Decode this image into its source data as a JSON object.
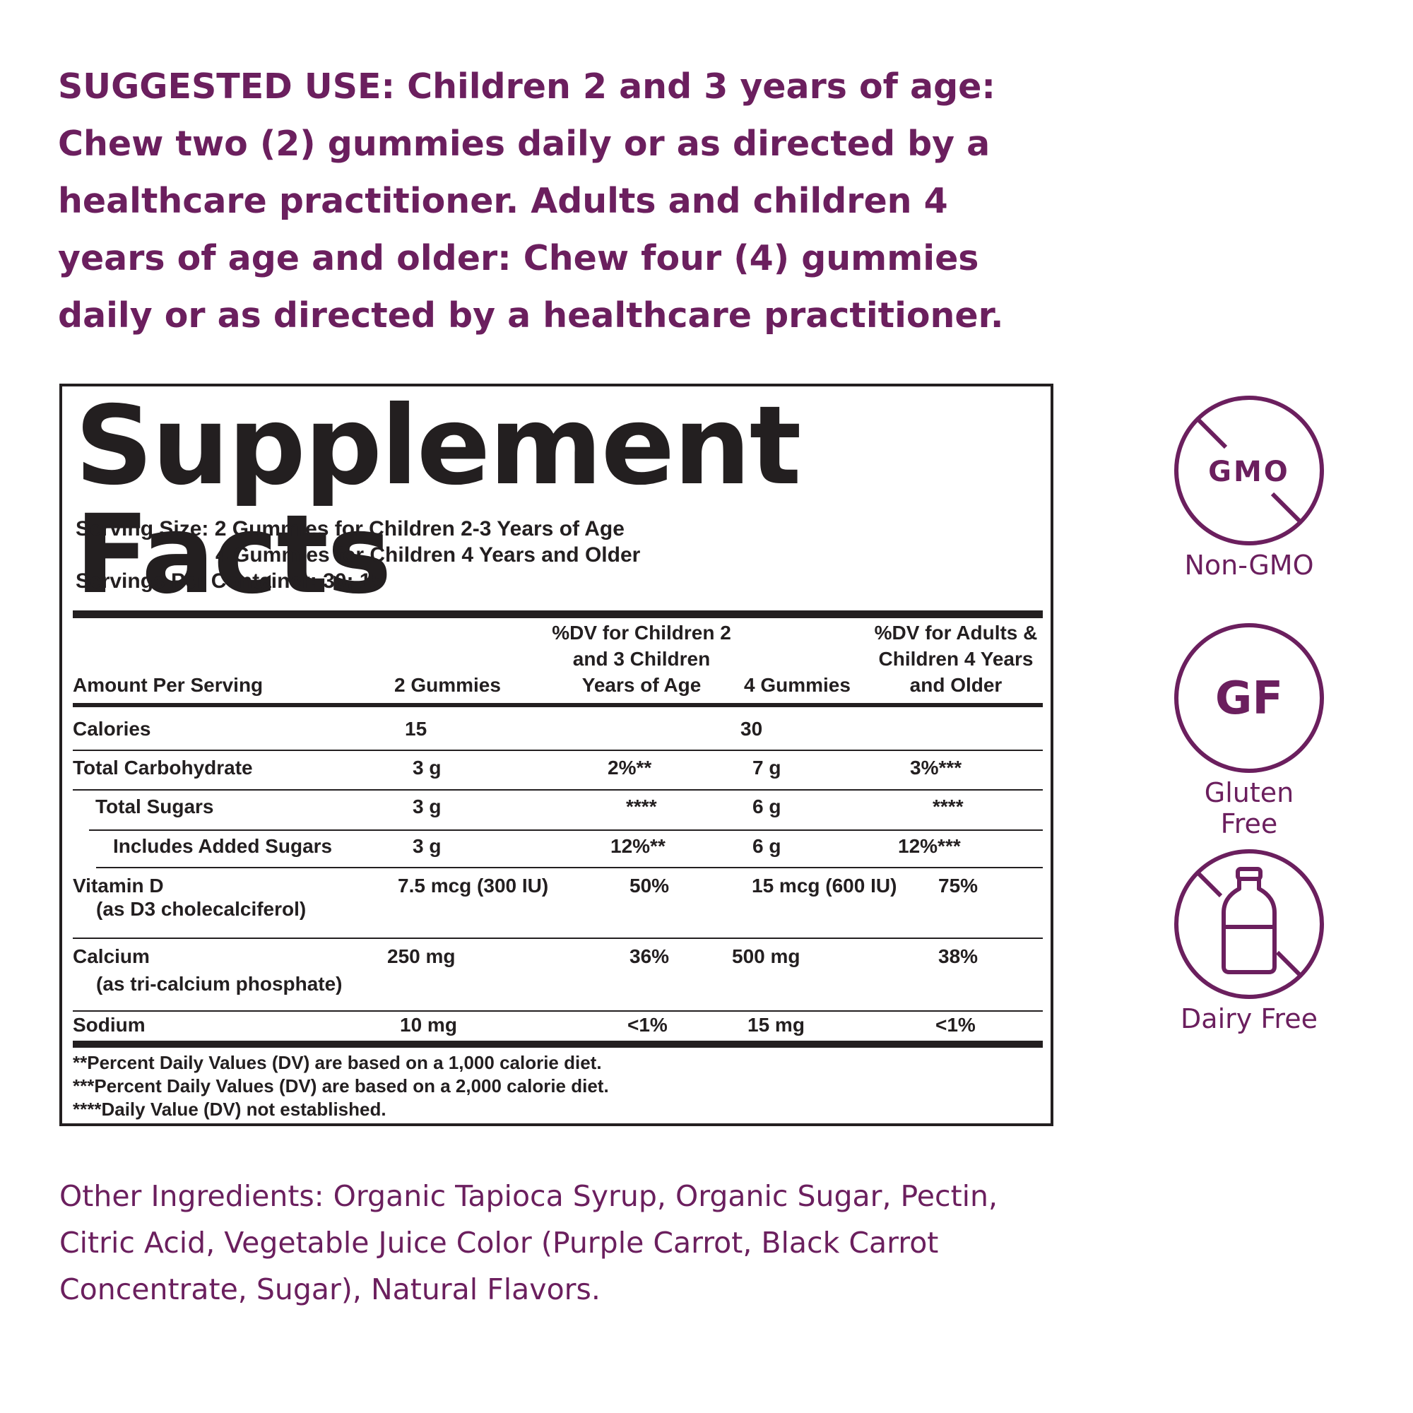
{
  "suggested_use": "SUGGESTED USE: Children 2 and 3 years of age: Chew two (2) gummies daily or as directed by a healthcare practitioner. Adults and children 4 years of age and older: Chew four (4) gummies daily or as directed by a healthcare practitioner.",
  "facts": {
    "title": "Supplement Facts",
    "serving_size_line1": "Serving Size: 2 Gummies for Children 2-3 Years of Age",
    "serving_size_line2": "4 Gummies for Children 4 Years and Older",
    "servings_per_container": "Servings Per Container: 30; 15",
    "headers": {
      "amount": "Amount Per Serving",
      "col1": "2 Gummies",
      "col2": "%DV for Children 2 and 3 Children Years of Age",
      "col3": "4 Gummies",
      "col4": "%DV for Adults & Children 4 Years and Older"
    },
    "rows": [
      {
        "name": "Calories",
        "col1": "15",
        "col2": "",
        "col3": "30",
        "col4": ""
      },
      {
        "name": "Total Carbohydrate",
        "col1": "3 g",
        "col2": "2%**",
        "col3": "7 g",
        "col4": "3%***"
      },
      {
        "name": "Total Sugars",
        "col1": "3 g",
        "col2": "****",
        "col3": "6 g",
        "col4": "****"
      },
      {
        "name": "Includes Added Sugars",
        "col1": "3 g",
        "col2": "12%**",
        "col3": "6 g",
        "col4": "12%***"
      },
      {
        "name": "Vitamin D",
        "sub": "(as D3 cholecalciferol)",
        "col1": "7.5 mcg (300 IU)",
        "col2": "50%",
        "col3": "15 mcg (600 IU)",
        "col4": "75%"
      },
      {
        "name": "Calcium",
        "sub": "(as tri-calcium phosphate)",
        "col1": "250 mg",
        "col2": "36%",
        "col3": "500 mg",
        "col4": "38%"
      },
      {
        "name": "Sodium",
        "col1": "10 mg",
        "col2": "<1%",
        "col3": "15 mg",
        "col4": "<1%"
      }
    ],
    "footnotes": [
      "**Percent Daily Values (DV) are based on a 1,000 calorie diet.",
      "***Percent Daily Values (DV) are based on a 2,000 calorie diet.",
      "****Daily Value (DV) not established."
    ]
  },
  "ingredients": "Other Ingredients: Organic Tapioca Syrup, Organic Sugar, Pectin, Citric Acid, Vegetable Juice Color (Purple Carrot, Black Carrot Concentrate, Sugar), Natural Flavors.",
  "badges": {
    "non_gmo": {
      "icon_text": "GMO",
      "label": "Non-GMO",
      "icon": "crossed-out-gmo-icon"
    },
    "gluten_free": {
      "icon_text": "GF",
      "label": "Gluten Free",
      "icon": "gf-circle-icon"
    },
    "dairy_free": {
      "icon_text": "",
      "label": "Dairy Free",
      "icon": "crossed-out-milk-bottle-icon"
    }
  },
  "colors": {
    "brand_purple": "#6b1f5e",
    "text_dark": "#231f20",
    "background": "#ffffff"
  }
}
